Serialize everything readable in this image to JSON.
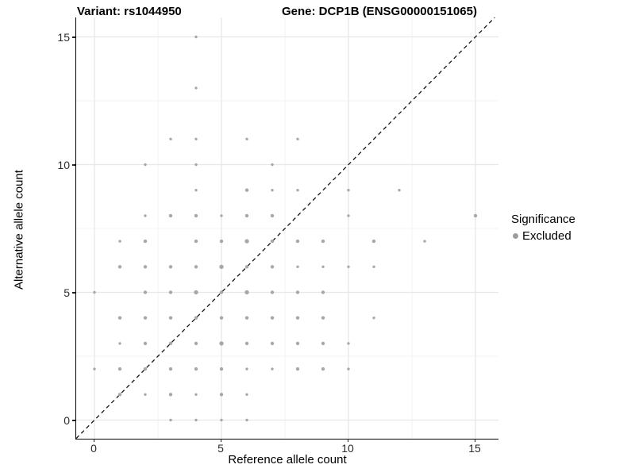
{
  "chart_data": {
    "type": "scatter",
    "title_left": "Variant: rs1044950",
    "title_right": "Gene: DCP1B (ENSG00000151065)",
    "xlabel": "Reference allele count",
    "ylabel": "Alternative allele count",
    "x_ticks": [
      "0",
      "5",
      "10",
      "15"
    ],
    "y_ticks": [
      "0",
      "5",
      "10",
      "15"
    ],
    "tick_values": [
      0,
      5,
      10,
      15
    ],
    "xlim": [
      -0.69,
      15.94
    ],
    "ylim": [
      -0.73,
      15.77
    ],
    "grid_major": [
      0,
      5,
      10,
      15
    ],
    "grid_minor": [
      2.5,
      7.5,
      12.5
    ],
    "grid_major_color": "#e7e7e7",
    "grid_minor_color": "#f3f3f3",
    "identity_line": {
      "equation": "y = x",
      "style": "dashed",
      "color": "#141414"
    },
    "point_color": "#a8a8a8",
    "size_class_radius_px": {
      "1": 1.7,
      "2": 2.2,
      "3": 2.7
    },
    "legend_position": "right",
    "points": [
      [
        4,
        15,
        1
      ],
      [
        4,
        13,
        1
      ],
      [
        3,
        11,
        1
      ],
      [
        4,
        11,
        1
      ],
      [
        6,
        11,
        1
      ],
      [
        8,
        11,
        1
      ],
      [
        2,
        10,
        1
      ],
      [
        4,
        10,
        1
      ],
      [
        7,
        10,
        1
      ],
      [
        4,
        9,
        1
      ],
      [
        6,
        9,
        2
      ],
      [
        7,
        9,
        1
      ],
      [
        8,
        9,
        1
      ],
      [
        10,
        9,
        1
      ],
      [
        12,
        9,
        1
      ],
      [
        2,
        8,
        1
      ],
      [
        3,
        8,
        2
      ],
      [
        4,
        8,
        2
      ],
      [
        5,
        8,
        1
      ],
      [
        6,
        8,
        2
      ],
      [
        7,
        8,
        2
      ],
      [
        10,
        8,
        1
      ],
      [
        15,
        8,
        2
      ],
      [
        1,
        7,
        1
      ],
      [
        2,
        7,
        2
      ],
      [
        4,
        7,
        2
      ],
      [
        5,
        7,
        2
      ],
      [
        6,
        7,
        3
      ],
      [
        7,
        7,
        2
      ],
      [
        8,
        7,
        2
      ],
      [
        9,
        7,
        2
      ],
      [
        11,
        7,
        2
      ],
      [
        13,
        7,
        1
      ],
      [
        1,
        6,
        2
      ],
      [
        2,
        6,
        2
      ],
      [
        3,
        6,
        2
      ],
      [
        4,
        6,
        2
      ],
      [
        5,
        6,
        3
      ],
      [
        6,
        6,
        2
      ],
      [
        7,
        6,
        2
      ],
      [
        8,
        6,
        1
      ],
      [
        9,
        6,
        1
      ],
      [
        10,
        6,
        1
      ],
      [
        11,
        6,
        1
      ],
      [
        0,
        5,
        1
      ],
      [
        2,
        5,
        2
      ],
      [
        3,
        5,
        2
      ],
      [
        4,
        5,
        3
      ],
      [
        5,
        5,
        2
      ],
      [
        6,
        5,
        3
      ],
      [
        7,
        5,
        2
      ],
      [
        8,
        5,
        2
      ],
      [
        9,
        5,
        2
      ],
      [
        1,
        4,
        2
      ],
      [
        2,
        4,
        2
      ],
      [
        3,
        4,
        2
      ],
      [
        4,
        4,
        2
      ],
      [
        5,
        4,
        2
      ],
      [
        6,
        4,
        2
      ],
      [
        7,
        4,
        2
      ],
      [
        8,
        4,
        2
      ],
      [
        9,
        4,
        2
      ],
      [
        11,
        4,
        1
      ],
      [
        1,
        3,
        1
      ],
      [
        2,
        3,
        2
      ],
      [
        3,
        3,
        2
      ],
      [
        4,
        3,
        2
      ],
      [
        5,
        3,
        3
      ],
      [
        6,
        3,
        2
      ],
      [
        7,
        3,
        2
      ],
      [
        8,
        3,
        2
      ],
      [
        9,
        3,
        2
      ],
      [
        10,
        3,
        1
      ],
      [
        0,
        2,
        1
      ],
      [
        1,
        2,
        2
      ],
      [
        2,
        2,
        2
      ],
      [
        3,
        2,
        2
      ],
      [
        4,
        2,
        2
      ],
      [
        5,
        2,
        2
      ],
      [
        6,
        2,
        1
      ],
      [
        7,
        2,
        1
      ],
      [
        8,
        2,
        2
      ],
      [
        9,
        2,
        2
      ],
      [
        10,
        2,
        1
      ],
      [
        1,
        1,
        2
      ],
      [
        2,
        1,
        1
      ],
      [
        3,
        1,
        2
      ],
      [
        4,
        1,
        1
      ],
      [
        5,
        1,
        2
      ],
      [
        6,
        1,
        1
      ],
      [
        3,
        0,
        1
      ],
      [
        4,
        0,
        1
      ],
      [
        5,
        0,
        1
      ],
      [
        6,
        0,
        1
      ]
    ]
  },
  "legend": {
    "title": "Significance",
    "items": [
      {
        "label": "Excluded",
        "color": "#9d9d9d"
      }
    ]
  }
}
